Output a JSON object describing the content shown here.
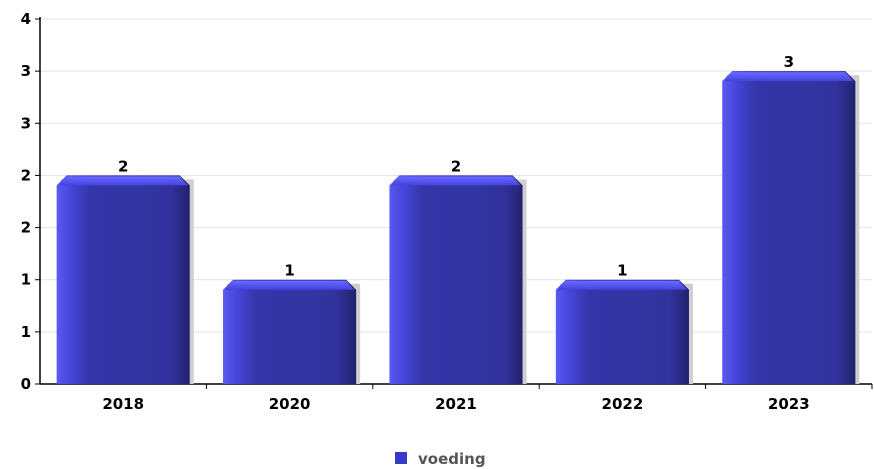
{
  "chart_data": {
    "type": "bar",
    "categories": [
      "2018",
      "2020",
      "2021",
      "2022",
      "2023"
    ],
    "series": [
      {
        "name": "voeding",
        "values": [
          2,
          1,
          2,
          1,
          3
        ],
        "color": "#3a3ac8"
      }
    ],
    "value_labels": [
      "2",
      "1",
      "2",
      "1",
      "3"
    ],
    "y_ticks": [
      {
        "value": 0,
        "label": "0"
      },
      {
        "value": 0.5,
        "label": "1"
      },
      {
        "value": 1,
        "label": "1"
      },
      {
        "value": 1.5,
        "label": "2"
      },
      {
        "value": 2,
        "label": "2"
      },
      {
        "value": 2.5,
        "label": "3"
      },
      {
        "value": 3,
        "label": "3"
      },
      {
        "value": 3.5,
        "label": "4"
      }
    ],
    "ylim": [
      0,
      3.5
    ],
    "grid": true,
    "legend_position": "bottom-center",
    "title": "",
    "xlabel": "",
    "ylabel": ""
  },
  "legend": {
    "label": "voeding",
    "color": "#3a3ac8"
  }
}
